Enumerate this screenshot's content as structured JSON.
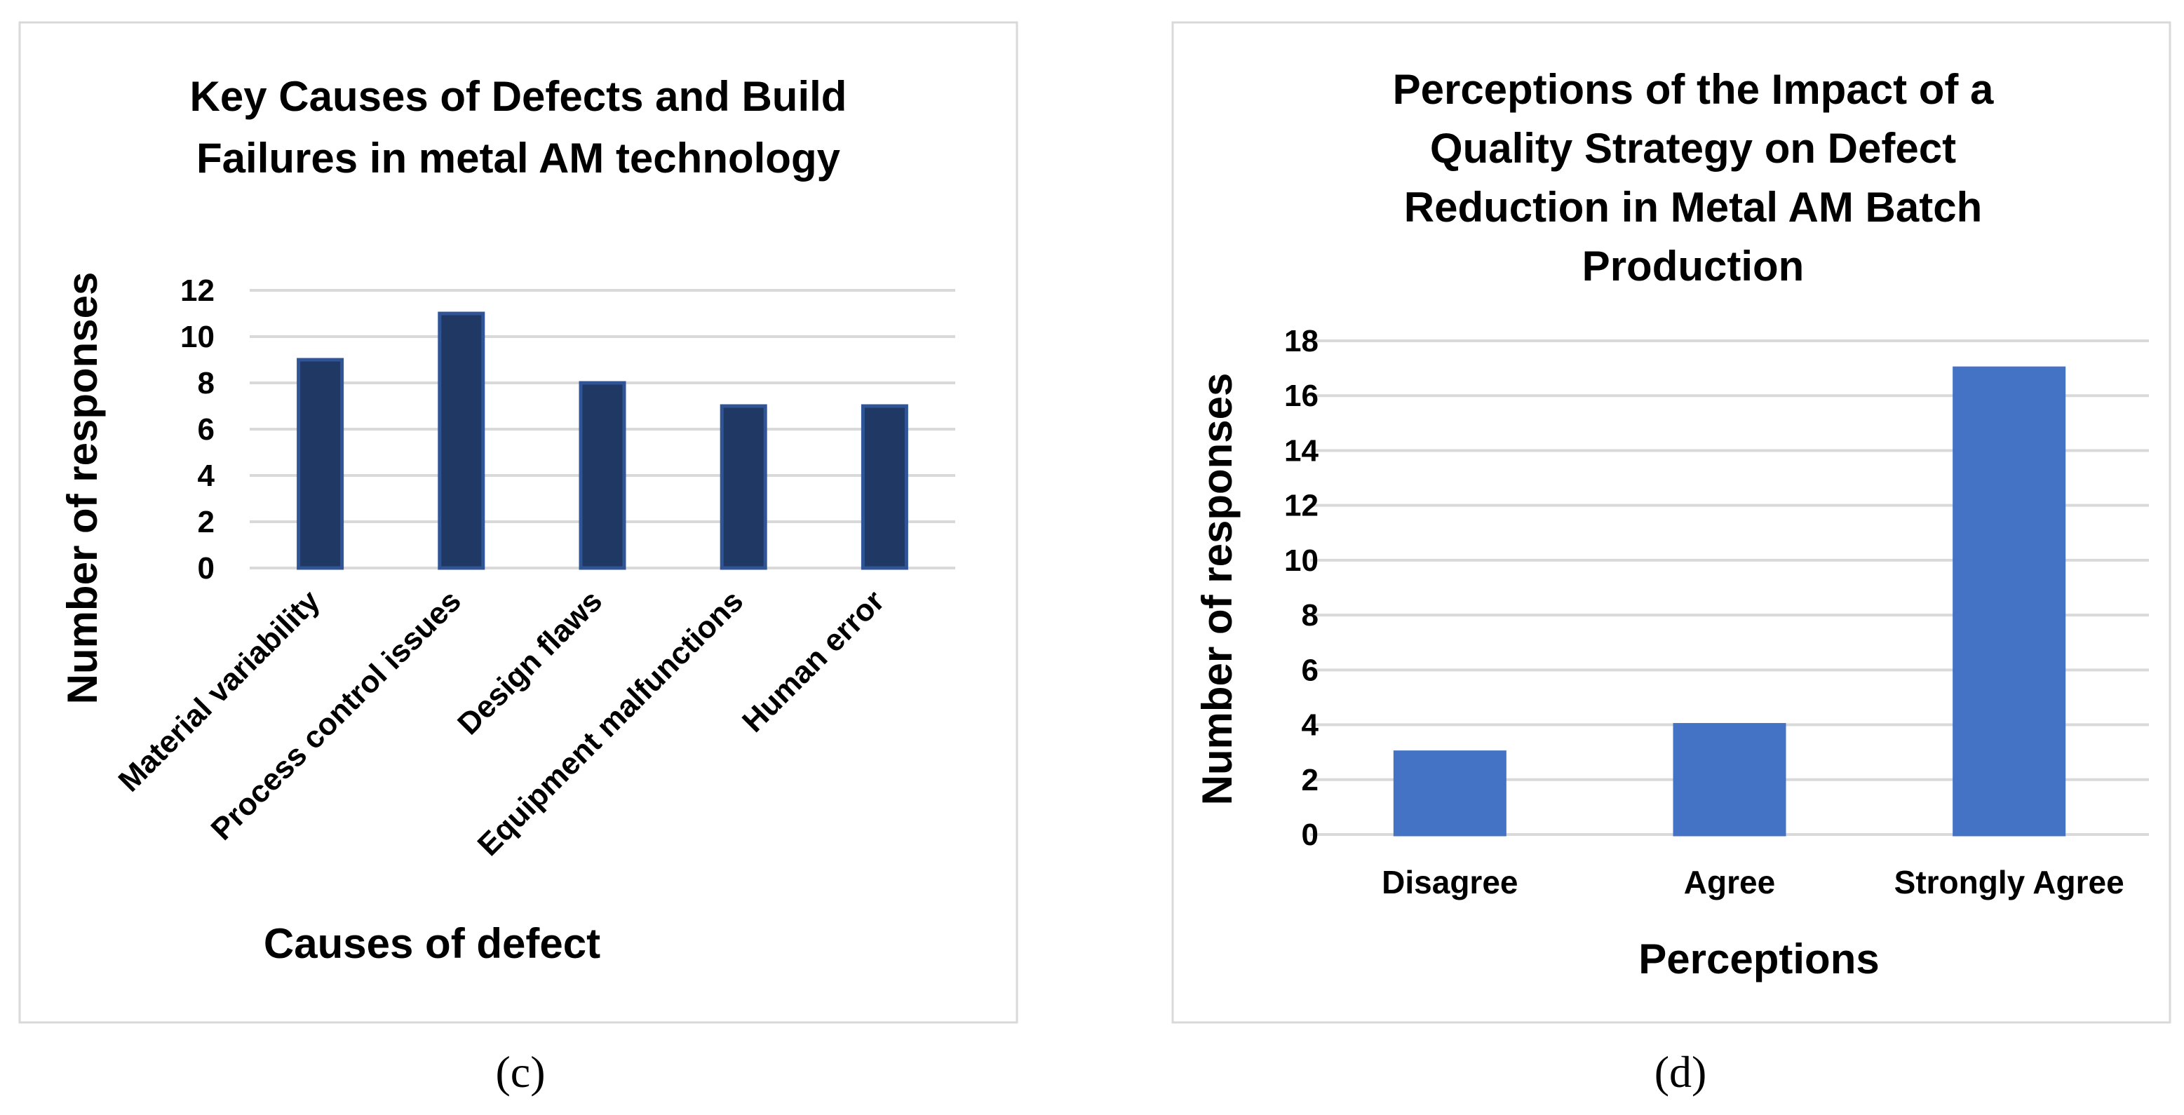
{
  "figure": {
    "panels": [
      {
        "id": "c",
        "caption": "(c)",
        "title_lines": [
          "Key Causes of Defects and Build",
          "Failures in metal AM technology"
        ],
        "xlabel": "Causes of defect",
        "ylabel": "Number of responses",
        "bar_color": "#203864",
        "bar_edge_color": "#2f5597"
      },
      {
        "id": "d",
        "caption": "(d)",
        "title_lines": [
          "Perceptions of the Impact of a",
          "Quality Strategy on Defect",
          "Reduction in Metal AM Batch",
          "Production"
        ],
        "xlabel": "Perceptions",
        "ylabel": "Number of responses",
        "bar_color": "#4472c4",
        "bar_edge_color": "#4472c4"
      }
    ]
  },
  "chart_data": [
    {
      "type": "bar",
      "title": "Key Causes of Defects and Build Failures in metal AM technology",
      "xlabel": "Causes of defect",
      "ylabel": "Number of responses",
      "categories": [
        "Material variability",
        "Process control issues",
        "Design flaws",
        "Equipment malfunctions",
        "Human error"
      ],
      "values": [
        9,
        11,
        8,
        7,
        7
      ],
      "ylim": [
        0,
        12
      ],
      "yticks": [
        0,
        2,
        4,
        6,
        8,
        10,
        12
      ],
      "grid": true,
      "legend": "none",
      "tick_label_rotation": "diagonal"
    },
    {
      "type": "bar",
      "title": "Perceptions of the Impact of a Quality Strategy on Defect Reduction in Metal AM Batch Production",
      "xlabel": "Perceptions",
      "ylabel": "Number of responses",
      "categories": [
        "Disagree",
        "Agree",
        "Strongly Agree"
      ],
      "values": [
        3,
        4,
        17
      ],
      "ylim": [
        0,
        18
      ],
      "yticks": [
        0,
        2,
        4,
        6,
        8,
        10,
        12,
        14,
        16,
        18
      ],
      "grid": true,
      "legend": "none",
      "tick_label_rotation": "horizontal"
    }
  ]
}
